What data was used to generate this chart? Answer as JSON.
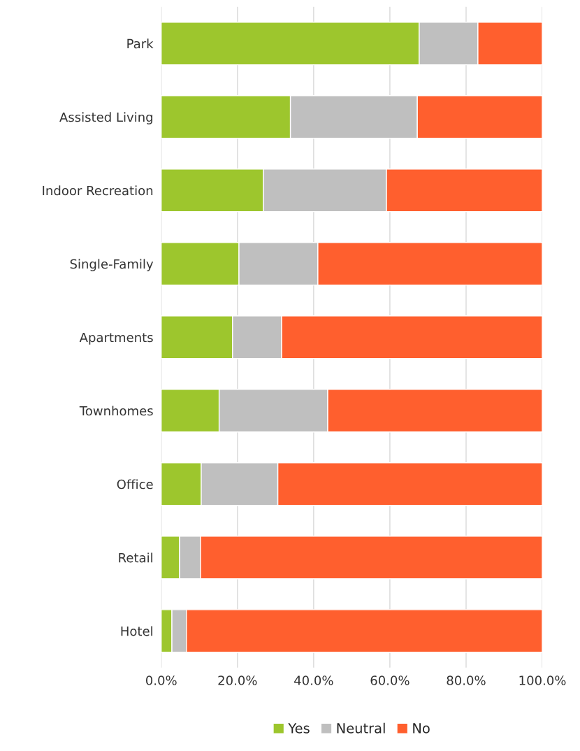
{
  "chart_data": {
    "type": "bar",
    "orientation": "horizontal",
    "stacked": true,
    "categories": [
      "Park",
      "Assisted Living",
      "Indoor Recreation",
      "Single-Family",
      "Apartments",
      "Townhomes",
      "Office",
      "Retail",
      "Hotel"
    ],
    "series": [
      {
        "name": "Yes",
        "color": "#9dc62d",
        "values": [
          67.7,
          33.9,
          26.8,
          20.4,
          18.7,
          15.2,
          10.5,
          4.8,
          2.8
        ]
      },
      {
        "name": "Neutral",
        "color": "#bfbfbf",
        "values": [
          15.4,
          33.3,
          32.3,
          20.7,
          12.9,
          28.5,
          20.1,
          5.5,
          3.8
        ]
      },
      {
        "name": "No",
        "color": "#ff5f2e",
        "values": [
          16.9,
          32.8,
          40.9,
          58.9,
          68.4,
          56.3,
          69.4,
          89.7,
          93.4
        ]
      }
    ],
    "xlim": [
      0,
      100
    ],
    "xticks": [
      {
        "value": 0,
        "label": "0.0%"
      },
      {
        "value": 20,
        "label": "20.0%"
      },
      {
        "value": 40,
        "label": "40.0%"
      },
      {
        "value": 60,
        "label": "60.0%"
      },
      {
        "value": 80,
        "label": "80.0%"
      },
      {
        "value": 100,
        "label": "100.0%"
      }
    ],
    "grid": "x",
    "legend": "bottom"
  }
}
